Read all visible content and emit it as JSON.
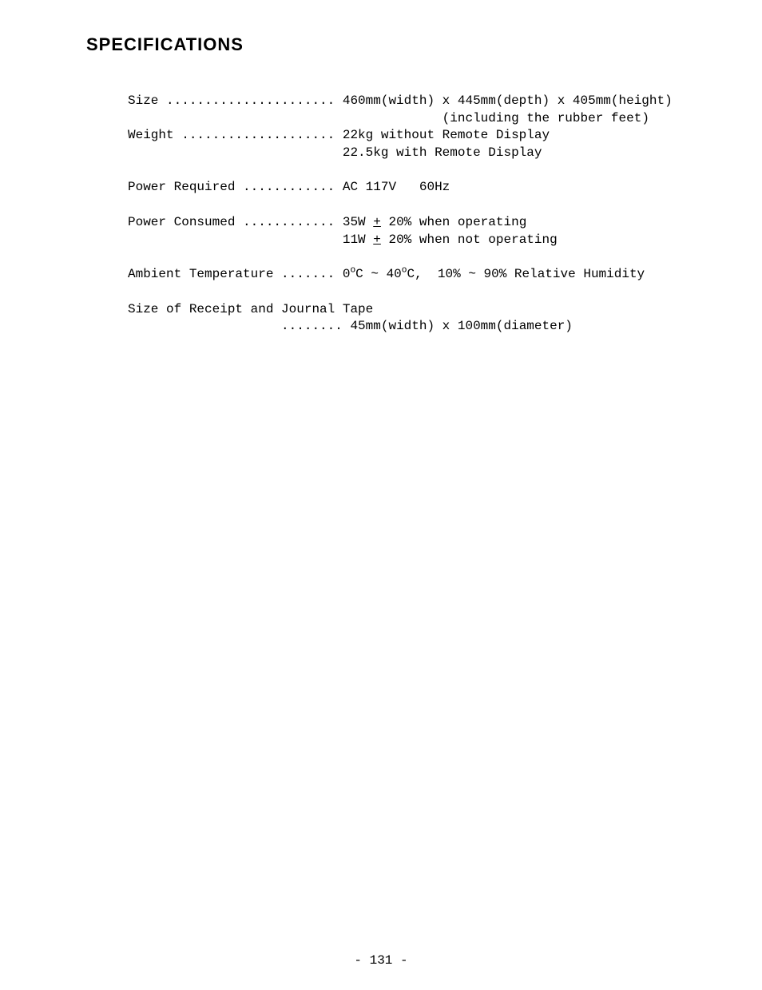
{
  "title": "SPECIFICATIONS",
  "specs": {
    "size": {
      "label": "Size ...................... ",
      "value": "460mm(width) x 445mm(depth) x 405mm(height)",
      "continuation_indent": "                                         ",
      "continuation": "(including the rubber feet)"
    },
    "weight": {
      "label": "Weight .................... ",
      "value": "22kg without Remote Display",
      "continuation_indent": "                            ",
      "continuation": "22.5kg with Remote Display"
    },
    "power_required": {
      "label": "Power Required ............ ",
      "value": "AC 117V   60Hz"
    },
    "power_consumed": {
      "label": "Power Consumed ............ ",
      "value_pre": "35W ",
      "value_pm": "+",
      "value_post": " 20% when operating",
      "continuation_indent": "                            ",
      "continuation_pre": "11W ",
      "continuation_pm": "+",
      "continuation_post": " 20% when not operating"
    },
    "ambient_temp": {
      "label": "Ambient Temperature ....... ",
      "v1": "0",
      "deg1": "o",
      "v2": "C ~ 40",
      "deg2": "o",
      "v3": "C,  10% ~ 90% Relative Humidity"
    },
    "tape_size": {
      "label_line": "Size of Receipt and Journal Tape",
      "continuation_indent": "                    ........ ",
      "continuation": "45mm(width) x 100mm(diameter)"
    }
  },
  "page_number": "- 131 -"
}
